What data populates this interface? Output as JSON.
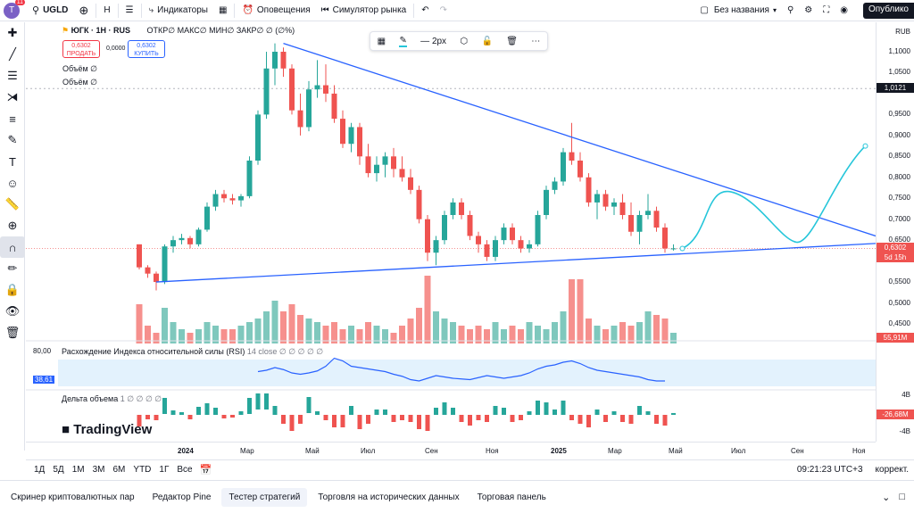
{
  "topbar": {
    "avatar_letter": "T",
    "avatar_badge": "11",
    "symbol": "UGLD",
    "interval": "H",
    "indicators": "Индикаторы",
    "alerts": "Оповещения",
    "replay": "Симулятор рынка",
    "layout_name": "Без названия",
    "publish": "Опублико"
  },
  "legend": {
    "title": "ЮГК · 1H · RUS",
    "ohlc": "ОТКР∅ МАКС∅ МИН∅ ЗАКР∅ ∅ (∅%)",
    "sell_price": "0,6302",
    "sell_label": "ПРОДАТЬ",
    "spread": "0,0000",
    "buy_price": "0,6302",
    "buy_label": "КУПИТЬ",
    "volume1": "Объём  ∅",
    "volume2": "Объём  ∅"
  },
  "drawbar": {
    "width_label": "2px"
  },
  "right_axis": {
    "currency": "RUB",
    "prices": [
      "1,1000",
      "1,0500",
      "0,9500",
      "0,9000",
      "0,8500",
      "0,8000",
      "0,7500",
      "0,7000",
      "0,6500",
      "0,5500",
      "0,5000",
      "0,4500"
    ],
    "crosshair_price": "1,0121",
    "last_price": "0,6302",
    "last_countdown": "5d 15h",
    "volume_tag": "55,91M",
    "rsi_top": "80,00",
    "rsi_value": "38,61",
    "delta_top": "4B",
    "delta_value": "-26,68M",
    "delta_bottom": "-4B"
  },
  "rsi_pane": {
    "title": "Расхождение Индекса относительной силы (RSI)",
    "params": "14 close  ∅ ∅ ∅ ∅ ∅"
  },
  "delta_pane": {
    "title": "Дельта объема",
    "params": "1  ∅ ∅ ∅ ∅"
  },
  "watermark": "TradingView",
  "time_axis": {
    "labels": [
      "2024",
      "Мар",
      "Май",
      "Июл",
      "Сен",
      "Ноя",
      "2025",
      "Мар",
      "Май",
      "Июл",
      "Сен",
      "Ноя"
    ]
  },
  "bottombar": {
    "ranges": [
      "1Д",
      "5Д",
      "1М",
      "3М",
      "6М",
      "YTD",
      "1Г",
      "Все"
    ],
    "clock": "09:21:23 UTC+3",
    "adjust": "коррект."
  },
  "tabs": [
    "Скринер криптовалютных пар",
    "Редактор Pine",
    "Тестер стратегий",
    "Торговля на исторических данных",
    "Торговая панель"
  ],
  "active_tab": 2,
  "colors": {
    "up": "#26a69a",
    "down": "#ef5350",
    "trend": "#2962ff",
    "projection": "#26c6da"
  },
  "chart_data": {
    "type": "candlestick",
    "symbol": "ЮГК",
    "interval": "1H",
    "candles": [
      {
        "o": 0.64,
        "h": 0.64,
        "l": 0.58,
        "c": 0.585
      },
      {
        "o": 0.585,
        "h": 0.59,
        "l": 0.56,
        "c": 0.57
      },
      {
        "o": 0.57,
        "h": 0.575,
        "l": 0.53,
        "c": 0.55
      },
      {
        "o": 0.55,
        "h": 0.64,
        "l": 0.545,
        "c": 0.635
      },
      {
        "o": 0.635,
        "h": 0.66,
        "l": 0.62,
        "c": 0.65
      },
      {
        "o": 0.65,
        "h": 0.665,
        "l": 0.64,
        "c": 0.655
      },
      {
        "o": 0.655,
        "h": 0.66,
        "l": 0.63,
        "c": 0.64
      },
      {
        "o": 0.64,
        "h": 0.68,
        "l": 0.635,
        "c": 0.675
      },
      {
        "o": 0.675,
        "h": 0.74,
        "l": 0.67,
        "c": 0.73
      },
      {
        "o": 0.73,
        "h": 0.77,
        "l": 0.72,
        "c": 0.76
      },
      {
        "o": 0.76,
        "h": 0.77,
        "l": 0.74,
        "c": 0.75
      },
      {
        "o": 0.75,
        "h": 0.76,
        "l": 0.735,
        "c": 0.745
      },
      {
        "o": 0.745,
        "h": 0.76,
        "l": 0.73,
        "c": 0.755
      },
      {
        "o": 0.755,
        "h": 0.85,
        "l": 0.75,
        "c": 0.84
      },
      {
        "o": 0.84,
        "h": 0.96,
        "l": 0.83,
        "c": 0.95
      },
      {
        "o": 0.95,
        "h": 1.1,
        "l": 0.94,
        "c": 1.06
      },
      {
        "o": 1.06,
        "h": 1.12,
        "l": 1.02,
        "c": 1.1
      },
      {
        "o": 1.1,
        "h": 1.11,
        "l": 1.04,
        "c": 1.06
      },
      {
        "o": 1.06,
        "h": 1.07,
        "l": 0.95,
        "c": 0.96
      },
      {
        "o": 0.96,
        "h": 1.0,
        "l": 0.9,
        "c": 0.92
      },
      {
        "o": 0.92,
        "h": 1.03,
        "l": 0.91,
        "c": 1.01
      },
      {
        "o": 1.01,
        "h": 1.08,
        "l": 0.99,
        "c": 1.02
      },
      {
        "o": 1.02,
        "h": 1.07,
        "l": 0.98,
        "c": 1.0
      },
      {
        "o": 1.0,
        "h": 1.02,
        "l": 0.93,
        "c": 0.94
      },
      {
        "o": 0.94,
        "h": 0.96,
        "l": 0.87,
        "c": 0.88
      },
      {
        "o": 0.88,
        "h": 0.93,
        "l": 0.86,
        "c": 0.92
      },
      {
        "o": 0.92,
        "h": 0.93,
        "l": 0.83,
        "c": 0.85
      },
      {
        "o": 0.85,
        "h": 0.88,
        "l": 0.8,
        "c": 0.81
      },
      {
        "o": 0.81,
        "h": 0.85,
        "l": 0.79,
        "c": 0.83
      },
      {
        "o": 0.83,
        "h": 0.86,
        "l": 0.8,
        "c": 0.85
      },
      {
        "o": 0.85,
        "h": 0.87,
        "l": 0.8,
        "c": 0.82
      },
      {
        "o": 0.82,
        "h": 0.85,
        "l": 0.79,
        "c": 0.8
      },
      {
        "o": 0.8,
        "h": 0.82,
        "l": 0.76,
        "c": 0.77
      },
      {
        "o": 0.77,
        "h": 0.78,
        "l": 0.69,
        "c": 0.7
      },
      {
        "o": 0.7,
        "h": 0.71,
        "l": 0.6,
        "c": 0.62
      },
      {
        "o": 0.62,
        "h": 0.66,
        "l": 0.59,
        "c": 0.65
      },
      {
        "o": 0.65,
        "h": 0.72,
        "l": 0.64,
        "c": 0.71
      },
      {
        "o": 0.71,
        "h": 0.75,
        "l": 0.7,
        "c": 0.74
      },
      {
        "o": 0.74,
        "h": 0.75,
        "l": 0.7,
        "c": 0.71
      },
      {
        "o": 0.71,
        "h": 0.72,
        "l": 0.65,
        "c": 0.66
      },
      {
        "o": 0.66,
        "h": 0.67,
        "l": 0.62,
        "c": 0.64
      },
      {
        "o": 0.64,
        "h": 0.65,
        "l": 0.6,
        "c": 0.61
      },
      {
        "o": 0.61,
        "h": 0.66,
        "l": 0.6,
        "c": 0.65
      },
      {
        "o": 0.65,
        "h": 0.69,
        "l": 0.64,
        "c": 0.68
      },
      {
        "o": 0.68,
        "h": 0.69,
        "l": 0.64,
        "c": 0.65
      },
      {
        "o": 0.65,
        "h": 0.66,
        "l": 0.62,
        "c": 0.63
      },
      {
        "o": 0.63,
        "h": 0.65,
        "l": 0.62,
        "c": 0.64
      },
      {
        "o": 0.64,
        "h": 0.72,
        "l": 0.635,
        "c": 0.71
      },
      {
        "o": 0.71,
        "h": 0.78,
        "l": 0.7,
        "c": 0.77
      },
      {
        "o": 0.77,
        "h": 0.8,
        "l": 0.76,
        "c": 0.79
      },
      {
        "o": 0.79,
        "h": 0.87,
        "l": 0.78,
        "c": 0.86
      },
      {
        "o": 0.86,
        "h": 0.93,
        "l": 0.83,
        "c": 0.84
      },
      {
        "o": 0.84,
        "h": 0.86,
        "l": 0.79,
        "c": 0.8
      },
      {
        "o": 0.8,
        "h": 0.81,
        "l": 0.73,
        "c": 0.74
      },
      {
        "o": 0.74,
        "h": 0.77,
        "l": 0.7,
        "c": 0.76
      },
      {
        "o": 0.76,
        "h": 0.77,
        "l": 0.72,
        "c": 0.73
      },
      {
        "o": 0.73,
        "h": 0.75,
        "l": 0.71,
        "c": 0.74
      },
      {
        "o": 0.74,
        "h": 0.76,
        "l": 0.7,
        "c": 0.71
      },
      {
        "o": 0.71,
        "h": 0.74,
        "l": 0.66,
        "c": 0.67
      },
      {
        "o": 0.67,
        "h": 0.72,
        "l": 0.64,
        "c": 0.71
      },
      {
        "o": 0.71,
        "h": 0.76,
        "l": 0.7,
        "c": 0.72
      },
      {
        "o": 0.72,
        "h": 0.73,
        "l": 0.67,
        "c": 0.68
      },
      {
        "o": 0.68,
        "h": 0.69,
        "l": 0.62,
        "c": 0.63
      },
      {
        "o": 0.63,
        "h": 0.64,
        "l": 0.625,
        "c": 0.6302
      }
    ],
    "trend_upper": {
      "from": {
        "candle": 17,
        "price": 1.12
      },
      "to_price_at_axis": 0.66
    },
    "trend_lower": {
      "from": {
        "candle": 2,
        "price": 0.55
      },
      "to_price_at_axis": 0.642
    },
    "volume_heights": [
      0.55,
      0.25,
      0.15,
      0.5,
      0.3,
      0.2,
      0.15,
      0.2,
      0.3,
      0.25,
      0.2,
      0.2,
      0.25,
      0.3,
      0.35,
      0.45,
      0.6,
      0.45,
      0.55,
      0.4,
      0.35,
      0.3,
      0.25,
      0.3,
      0.2,
      0.25,
      0.2,
      0.3,
      0.25,
      0.2,
      0.15,
      0.25,
      0.35,
      0.5,
      0.95,
      0.45,
      0.35,
      0.3,
      0.25,
      0.2,
      0.25,
      0.2,
      0.3,
      0.2,
      0.25,
      0.2,
      0.3,
      0.25,
      0.2,
      0.3,
      0.45,
      0.9,
      0.9,
      0.35,
      0.25,
      0.2,
      0.25,
      0.3,
      0.25,
      0.3,
      0.45,
      0.4,
      0.35,
      0.15
    ],
    "rsi": [
      52,
      54,
      58,
      55,
      50,
      48,
      50,
      53,
      60,
      72,
      68,
      60,
      58,
      56,
      54,
      52,
      48,
      45,
      40,
      38,
      42,
      46,
      44,
      42,
      41,
      40,
      43,
      46,
      44,
      42,
      44,
      46,
      50,
      56,
      60,
      62,
      66,
      68,
      64,
      58,
      54,
      52,
      50,
      48,
      46,
      44,
      40,
      38,
      38
    ]
  }
}
